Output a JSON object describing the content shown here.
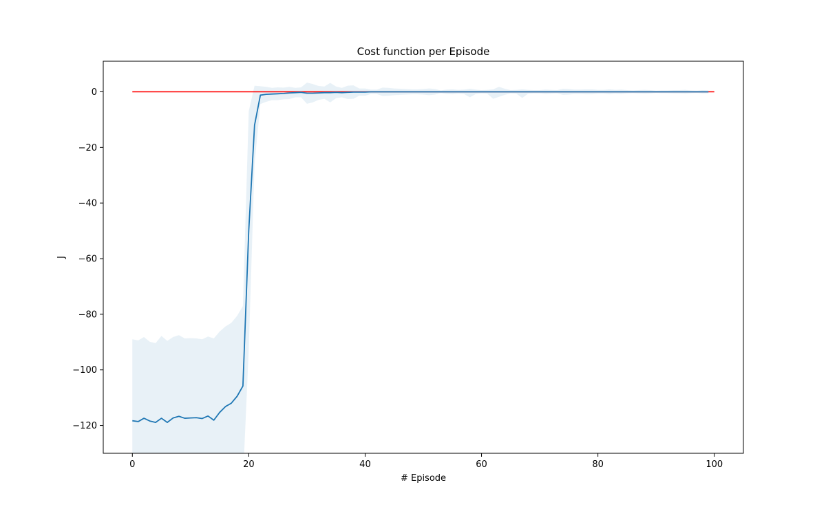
{
  "chart_data": {
    "type": "line",
    "title": "Cost function per Episode",
    "xlabel": "# Episode",
    "ylabel": "J",
    "xlim": [
      -5,
      105
    ],
    "ylim": [
      -130,
      11
    ],
    "xticks": [
      0,
      20,
      40,
      60,
      80,
      100
    ],
    "yticks": [
      0,
      -20,
      -40,
      -60,
      -80,
      -100,
      -120
    ],
    "grid": false,
    "legend": "none",
    "colors": {
      "mean": "#1f77b4",
      "band": "#1f77b4",
      "reference": "#ff0000"
    },
    "reference_line": {
      "y": 0,
      "x": [
        0,
        100
      ]
    },
    "series": [
      {
        "x": [
          0,
          1,
          2,
          3,
          4,
          5,
          6,
          7,
          8,
          9,
          10,
          11,
          12,
          13,
          14,
          15,
          16,
          17,
          18,
          19,
          20,
          21,
          22,
          23,
          24,
          25,
          26,
          27,
          28,
          29,
          30,
          31,
          32,
          33,
          34,
          35,
          36,
          37,
          38,
          39,
          40,
          41,
          42,
          43,
          44,
          45,
          46,
          47,
          48,
          49,
          50,
          51,
          52,
          53,
          54,
          55,
          56,
          57,
          58,
          59,
          60,
          61,
          62,
          63,
          64,
          65,
          66,
          67,
          68,
          69,
          70,
          71,
          72,
          73,
          74,
          75,
          76,
          77,
          78,
          79,
          80,
          81,
          82,
          83,
          84,
          85,
          86,
          87,
          88,
          89,
          90,
          91,
          92,
          93,
          94,
          95,
          96,
          97,
          98,
          99
        ],
        "y": [
          -118.3,
          -118.6,
          -117.4,
          -118.4,
          -118.9,
          -117.4,
          -118.9,
          -117.3,
          -116.7,
          -117.4,
          -117.3,
          -117.2,
          -117.5,
          -116.6,
          -118.1,
          -115.3,
          -113.2,
          -112.0,
          -109.5,
          -105.8,
          -50.0,
          -12.0,
          -1.2,
          -0.9,
          -0.8,
          -0.7,
          -0.6,
          -0.4,
          -0.3,
          -0.2,
          -0.5,
          -0.5,
          -0.4,
          -0.3,
          -0.3,
          -0.2,
          -0.3,
          -0.2,
          -0.1,
          -0.1,
          -0.1,
          0,
          0,
          0,
          0,
          0,
          0,
          0,
          0,
          0,
          0,
          0,
          0,
          0,
          0,
          0,
          0,
          0,
          0,
          0,
          0,
          0,
          0,
          0,
          0,
          0,
          0,
          0,
          0,
          0,
          0,
          0,
          0,
          0,
          0,
          0,
          0,
          0,
          0,
          0,
          0,
          0,
          0,
          0,
          0,
          0,
          0,
          0,
          0,
          0,
          0,
          0,
          0,
          0,
          0,
          0,
          0,
          0,
          0,
          0
        ],
        "upper": [
          -89.0,
          -89.4,
          -88.2,
          -89.9,
          -90.4,
          -87.8,
          -89.6,
          -88.2,
          -87.5,
          -88.7,
          -88.6,
          -88.7,
          -89.0,
          -88.0,
          -88.7,
          -86.2,
          -84.4,
          -83.1,
          -80.6,
          -77.0,
          -7.0,
          2.2,
          2.0,
          1.8,
          1.4,
          1.6,
          1.5,
          1.8,
          1.4,
          1.6,
          3.3,
          2.8,
          2.1,
          1.9,
          3.2,
          1.9,
          1.4,
          2.2,
          2.3,
          1.2,
          1.2,
          0.8,
          0.8,
          1.5,
          1.4,
          1.2,
          1.1,
          1.0,
          0.9,
          0.9,
          1.0,
          1.2,
          1.0,
          0.5,
          0.8,
          0.9,
          0.7,
          0.8,
          1.1,
          0.8,
          0.6,
          0.7,
          0.9,
          1.8,
          1.1,
          0.6,
          0.7,
          0.9,
          0.7,
          0.6,
          0.6,
          0.8,
          0.7,
          0.6,
          1.1,
          1.0,
          0.8,
          0.8,
          0.9,
          0.9,
          0.7,
          0.7,
          0.9,
          0.7,
          0.8,
          0.6,
          0.5,
          0.6,
          0.7,
          0.6,
          0.4,
          0.5,
          0.5,
          0.6,
          0.6,
          0.7,
          0.5,
          0.4,
          0.6,
          0.5
        ],
        "lower": [
          -140,
          -140,
          -140,
          -140,
          -140,
          -140,
          -140,
          -140,
          -140,
          -140,
          -140,
          -140,
          -140,
          -140,
          -140,
          -140,
          -140,
          -140,
          -140,
          -140,
          -93.0,
          -26.0,
          -4.4,
          -3.6,
          -3.0,
          -3.0,
          -2.7,
          -2.6,
          -2.0,
          -2.0,
          -4.3,
          -3.8,
          -2.9,
          -2.5,
          -3.8,
          -2.3,
          -2.0,
          -2.6,
          -2.5,
          -1.4,
          -1.4,
          -0.8,
          -0.8,
          -1.5,
          -1.4,
          -1.2,
          -1.1,
          -1.0,
          -0.9,
          -0.9,
          -1.0,
          -1.2,
          -1.0,
          -0.5,
          -0.8,
          -0.9,
          -0.7,
          -0.8,
          -2.0,
          -0.8,
          -0.6,
          -0.7,
          -2.5,
          -1.8,
          -1.1,
          -0.6,
          -0.7,
          -2.2,
          -0.7,
          -0.6,
          -0.6,
          -0.8,
          -0.7,
          -0.6,
          -1.1,
          -1.0,
          -0.8,
          -0.8,
          -0.9,
          -0.9,
          -0.7,
          -0.7,
          -0.9,
          -0.7,
          -0.8,
          -0.6,
          -0.5,
          -0.6,
          -0.7,
          -0.6,
          -0.4,
          -0.5,
          -0.5,
          -0.6,
          -0.6,
          -0.7,
          -0.5,
          -0.4,
          -0.6,
          -0.5
        ]
      }
    ]
  }
}
